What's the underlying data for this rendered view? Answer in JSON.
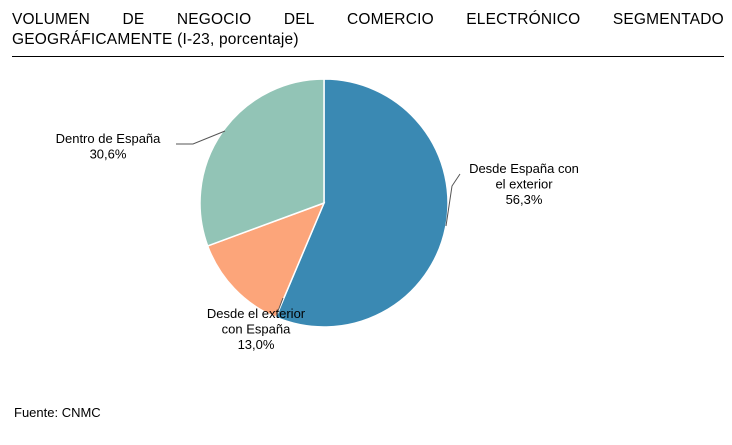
{
  "title_words": [
    "VOLUMEN",
    "DE",
    "NEGOCIO",
    "DEL",
    "COMERCIO",
    "ELECTRÓNICO",
    "SEGMENTADO"
  ],
  "title_line2": "GEOGRÁFICAMENTE (I-23, porcentaje)",
  "source": "Fuente: CNMC",
  "chart_data": {
    "type": "pie",
    "title": "VOLUMEN DE NEGOCIO DEL COMERCIO ELECTRÓNICO SEGMENTADO GEOGRÁFICAMENTE (I-23, porcentaje)",
    "slices": [
      {
        "label_lines": [
          "Desde España con",
          "el exterior"
        ],
        "value": 56.3,
        "value_label": "56,3%",
        "color": "#3a89b3"
      },
      {
        "label_lines": [
          "Desde el exterior",
          "con España"
        ],
        "value": 13.0,
        "value_label": "13,0%",
        "color": "#fca57a"
      },
      {
        "label_lines": [
          "Dentro de España"
        ],
        "value": 30.6,
        "value_label": "30,6%",
        "color": "#92c4b6"
      }
    ],
    "start_angle": "12 o'clock",
    "direction": "clockwise",
    "legend": "none",
    "slice_border_color": "#ffffff"
  }
}
